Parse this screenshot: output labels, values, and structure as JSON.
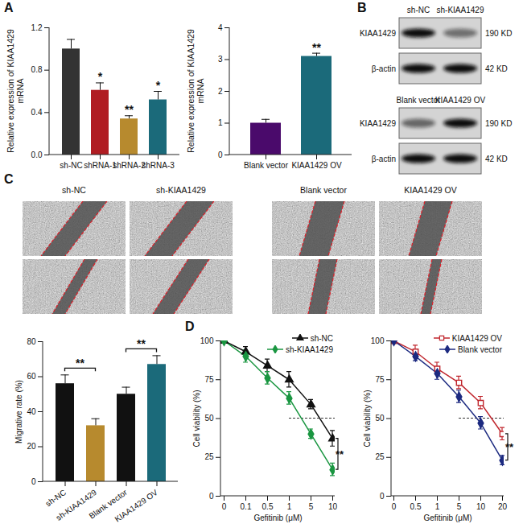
{
  "panel_labels": [
    "A",
    "B",
    "C",
    "D"
  ],
  "chart_data": [
    {
      "type": "bar",
      "y_label": "Relative expression of KIAA1429 mRNA",
      "categories": [
        "sh-NC",
        "shRNA-1",
        "shRNA-2",
        "shRNA-3"
      ],
      "values": [
        1.0,
        0.61,
        0.34,
        0.52
      ],
      "errors": [
        0.09,
        0.07,
        0.03,
        0.08
      ],
      "significance": [
        null,
        "*",
        "**",
        "*"
      ],
      "colors": [
        "#333333",
        "#b01c22",
        "#b78a2e",
        "#1b6a7a"
      ],
      "ylim": [
        0,
        1.2
      ],
      "yticks": [
        {
          "value": 0,
          "label": "0.0"
        },
        {
          "value": 0.4,
          "label": "0.4"
        },
        {
          "value": 0.8,
          "label": "0.8"
        },
        {
          "value": 1.2,
          "label": "1.2"
        }
      ]
    },
    {
      "type": "bar",
      "y_label": "Relative expression of KIAA1429 mRNA",
      "categories": [
        "Blank vector",
        "KIAA1429 OV"
      ],
      "values": [
        1.0,
        3.1
      ],
      "errors": [
        0.12,
        0.1
      ],
      "significance": [
        null,
        "**"
      ],
      "colors": [
        "#4a0a6b",
        "#1b6a7a"
      ],
      "ylim": [
        0,
        4
      ],
      "yticks": [
        0,
        1,
        2,
        3,
        4
      ]
    },
    {
      "type": "bar",
      "y_label": "Migrative rate (%)",
      "categories": [
        "sh-NC",
        "sh-KIAA1429",
        "Blank vector",
        "KIAA1429 OV"
      ],
      "values": [
        56,
        32,
        50,
        67
      ],
      "errors": [
        5,
        4,
        4,
        5
      ],
      "significance": [
        {
          "between": [
            "sh-NC",
            "sh-KIAA1429"
          ],
          "text": "**"
        },
        {
          "between": [
            "Blank vector",
            "KIAA1429 OV"
          ],
          "text": "**"
        }
      ],
      "colors": [
        "#111111",
        "#b78a2e",
        "#111111",
        "#1b6a7a"
      ],
      "ylim": [
        0,
        80
      ],
      "yticks": [
        0,
        20,
        40,
        60,
        80
      ]
    },
    {
      "type": "line",
      "x_label": "Gefitinib (μM)",
      "y_label": "Cell viability (%)",
      "categories": [
        "0",
        "0.1",
        "0.5",
        "1",
        "5",
        "10"
      ],
      "series": [
        {
          "name": "sh-NC",
          "color": "#111111",
          "marker": "triangle",
          "values": [
            100,
            93,
            84,
            75,
            59,
            37
          ],
          "errors": [
            0,
            3,
            4,
            5,
            3,
            5
          ]
        },
        {
          "name": "sh-KIAA1429",
          "color": "#1a9641",
          "marker": "diamond",
          "values": [
            100,
            90,
            76,
            63,
            40,
            17
          ],
          "errors": [
            0,
            4,
            4,
            4,
            3,
            4
          ]
        }
      ],
      "reference_line": {
        "y": 50,
        "from": "1"
      },
      "significance": "**",
      "legend": "upper right",
      "ylim": [
        0,
        100
      ],
      "yticks": [
        0,
        25,
        50,
        75,
        100
      ]
    },
    {
      "type": "line",
      "x_label": "Gefitinib (μM)",
      "y_label": "Cell viability (%)",
      "categories": [
        "0",
        "0.5",
        "1",
        "5",
        "10",
        "20"
      ],
      "series": [
        {
          "name": "KIAA1429 OV",
          "color": "#c0262d",
          "marker": "open square",
          "values": [
            100,
            93,
            82,
            73,
            60,
            40
          ],
          "errors": [
            0,
            4,
            4,
            4,
            4,
            4
          ]
        },
        {
          "name": "Blank vector",
          "color": "#1c2a80",
          "marker": "diamond",
          "values": [
            100,
            90,
            79,
            64,
            47,
            23
          ],
          "errors": [
            0,
            3,
            4,
            4,
            4,
            3
          ]
        }
      ],
      "reference_line": {
        "y": 50,
        "from": "5"
      },
      "significance": "**",
      "legend": "upper right",
      "ylim": [
        0,
        100
      ],
      "yticks": [
        0,
        25,
        50,
        75,
        100
      ]
    }
  ],
  "blots": [
    {
      "columns": [
        "sh-NC",
        "sh-KIAA1429"
      ],
      "rows": [
        {
          "label": "KIAA1429",
          "size": "190 KD"
        },
        {
          "label": "β-actin",
          "size": "42 KD"
        }
      ]
    },
    {
      "columns": [
        "Blank vector",
        "KIAA1429 OV"
      ],
      "rows": [
        {
          "label": "KIAA1429",
          "size": "190 KD"
        },
        {
          "label": "β-actin",
          "size": "42 KD"
        }
      ]
    }
  ],
  "wound_images": [
    "sh-NC",
    "sh-KIAA1429",
    "Blank vector",
    "KIAA1429 OV"
  ]
}
